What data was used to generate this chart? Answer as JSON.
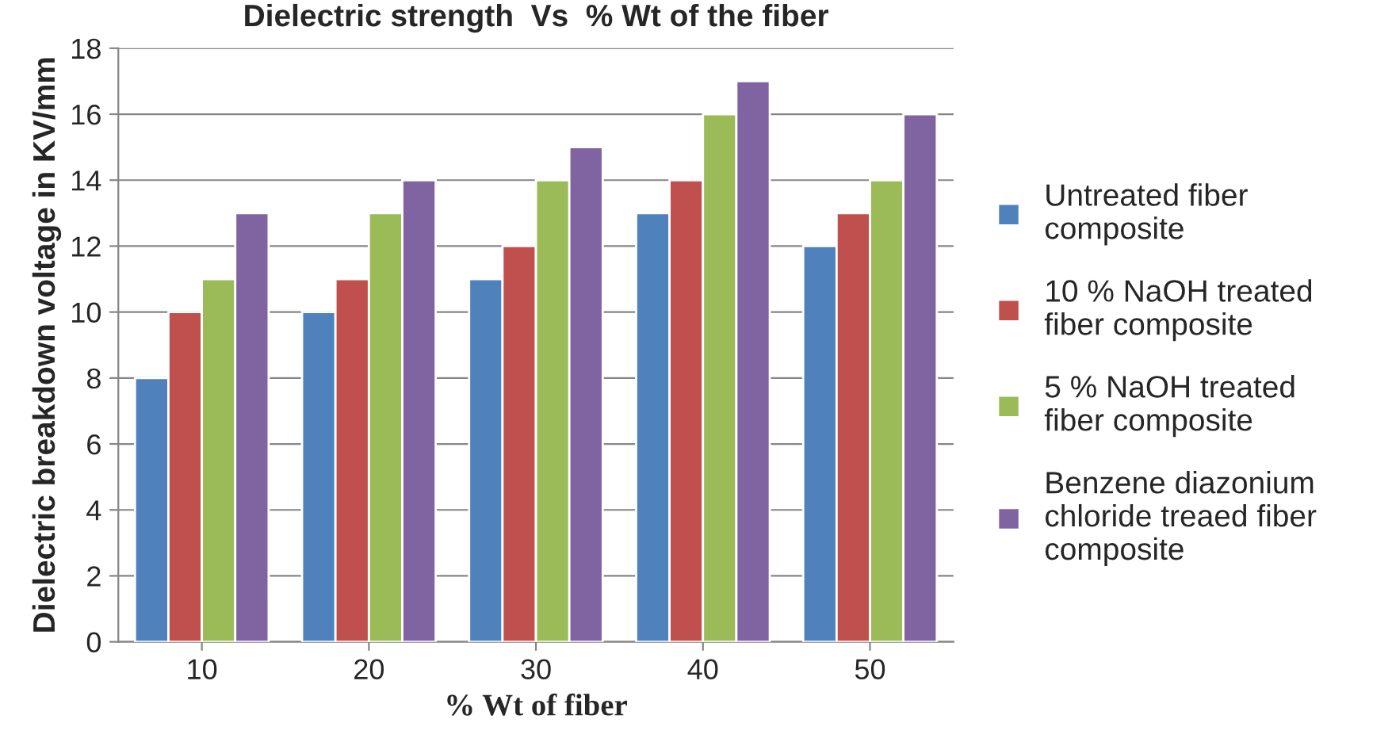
{
  "chart_data": {
    "type": "bar",
    "title": "Dielectric strength  Vs  % Wt of the fiber",
    "xlabel": "% Wt of fiber",
    "ylabel": "Dielectric breakdown voltage in KV/mm",
    "categories": [
      "10",
      "20",
      "30",
      "40",
      "50"
    ],
    "series": [
      {
        "name": "Untreated fiber\ncomposite",
        "color": "#4f81bd",
        "values": [
          8,
          10,
          11,
          13,
          12
        ]
      },
      {
        "name": "10 % NaOH treated\nfiber composite",
        "color": "#c0504d",
        "values": [
          10,
          11,
          12,
          14,
          13
        ]
      },
      {
        "name": "5 % NaOH treated\nfiber composite",
        "color": "#9bbb59",
        "values": [
          11,
          13,
          14,
          16,
          14
        ]
      },
      {
        "name": "Benzene diazonium\nchloride treaed fiber\ncomposite",
        "color": "#8064a2",
        "values": [
          13,
          14,
          15,
          17,
          16
        ]
      }
    ],
    "ylim": [
      0,
      18
    ],
    "yticks": [
      0,
      2,
      4,
      6,
      8,
      10,
      12,
      14,
      16,
      18
    ],
    "grid": "y",
    "legend": "right"
  }
}
